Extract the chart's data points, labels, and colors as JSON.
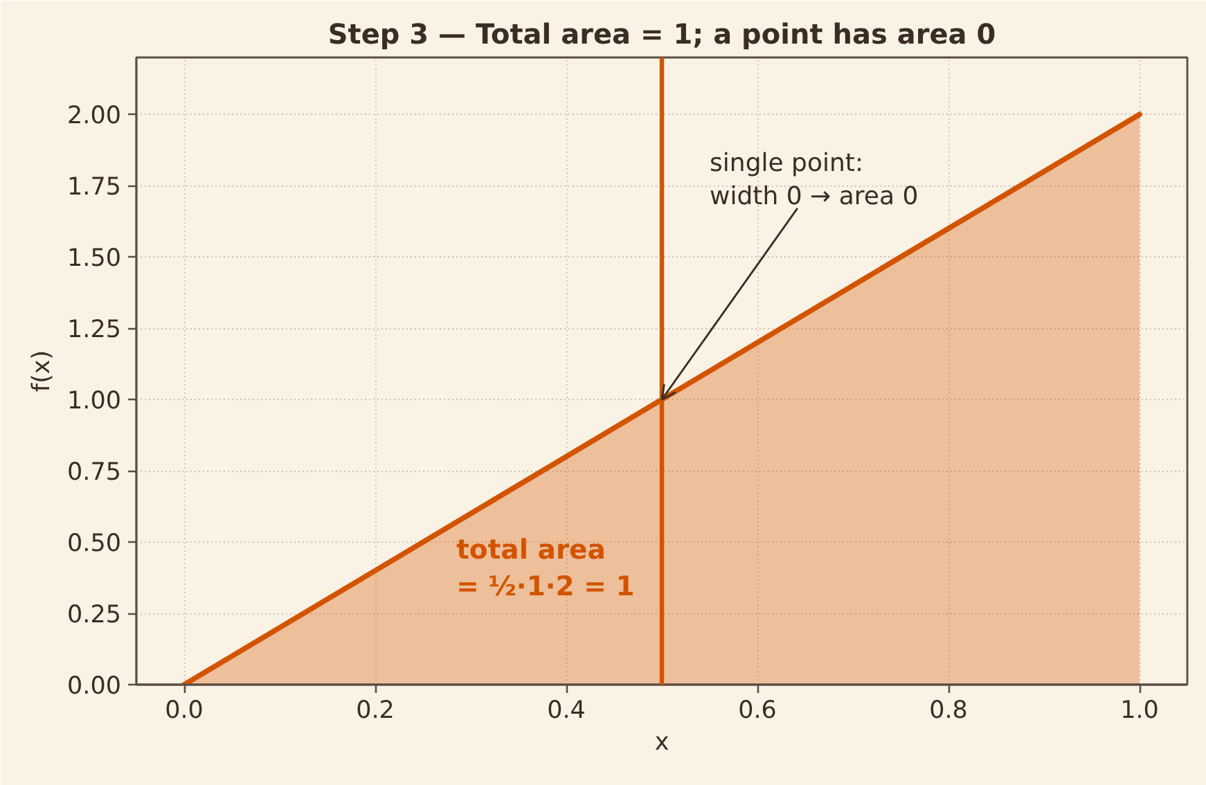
{
  "chart_data": {
    "type": "area",
    "title": "Step 3 — Total area = 1; a point has area 0",
    "xlabel": "x",
    "ylabel": "f(x)",
    "x": [
      0,
      1
    ],
    "series": [
      {
        "color": "#d35400",
        "values": [
          0,
          2
        ]
      }
    ],
    "xlim": [
      -0.05,
      1.05
    ],
    "ylim": [
      0,
      2.2
    ],
    "xticks": [
      {
        "value": 0,
        "label": "0.0"
      },
      {
        "value": 0.2,
        "label": "0.2"
      },
      {
        "value": 0.4,
        "label": "0.4"
      },
      {
        "value": 0.6,
        "label": "0.6"
      },
      {
        "value": 0.8,
        "label": "0.8"
      },
      {
        "value": 1,
        "label": "1.0"
      }
    ],
    "yticks": [
      {
        "value": 0,
        "label": "0.00"
      },
      {
        "value": 0.25,
        "label": "0.25"
      },
      {
        "value": 0.5,
        "label": "0.50"
      },
      {
        "value": 0.75,
        "label": "0.75"
      },
      {
        "value": 1,
        "label": "1.00"
      },
      {
        "value": 1.25,
        "label": "1.25"
      },
      {
        "value": 1.5,
        "label": "1.50"
      },
      {
        "value": 1.75,
        "label": "1.75"
      },
      {
        "value": 2,
        "label": "2.00"
      }
    ],
    "grid": true,
    "ref_lines": [
      {
        "axis": "x",
        "value": 0.5,
        "color": "#d35400"
      }
    ],
    "annotations": [
      {
        "text": "single point:\nwidth 0 → area 0",
        "x": 0.5,
        "y": 1.0
      },
      "total area\n= ½·1·2 = 1"
    ]
  }
}
